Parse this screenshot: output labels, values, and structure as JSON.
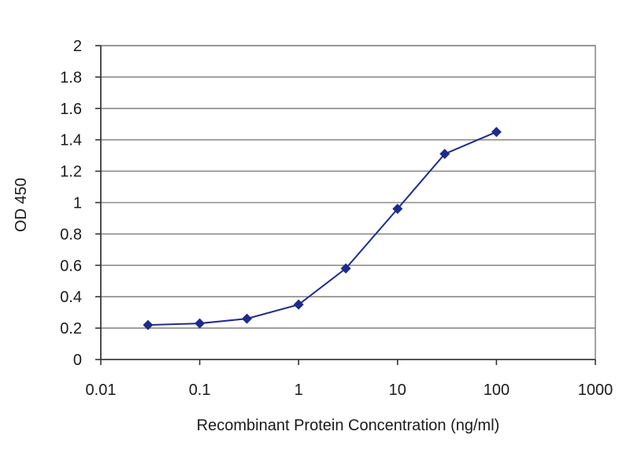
{
  "chart_data": {
    "type": "line",
    "title": "",
    "xlabel": "Recombinant Protein Concentration (ng/ml)",
    "ylabel": "OD 450",
    "xscale": "log",
    "xlim": [
      0.01,
      1000
    ],
    "ylim": [
      0,
      2
    ],
    "xticks": [
      "0.01",
      "0.1",
      "1",
      "10",
      "100",
      "1000"
    ],
    "yticks": [
      "0",
      "0.2",
      "0.4",
      "0.6",
      "0.8",
      "1",
      "1.2",
      "1.4",
      "1.6",
      "1.8",
      "2"
    ],
    "grid": "horizontal",
    "legend": "none",
    "series": [
      {
        "color": "#1f2b8a",
        "x": [
          0.03,
          0.1,
          0.3,
          1,
          3,
          10,
          30,
          100
        ],
        "y": [
          0.22,
          0.23,
          0.26,
          0.35,
          0.58,
          0.96,
          1.31,
          1.45
        ]
      }
    ]
  }
}
